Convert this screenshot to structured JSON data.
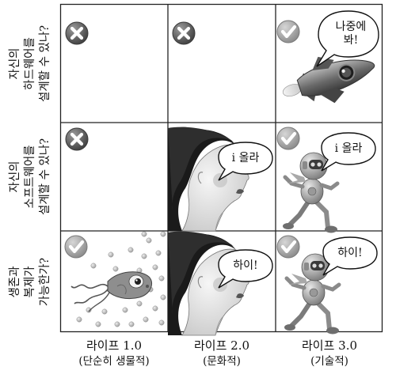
{
  "rows": [
    {
      "label_lines": [
        "자신의",
        "하드웨어를",
        "설계할 수 있나?"
      ]
    },
    {
      "label_lines": [
        "자신의",
        "소프트웨어를",
        "설계할 수 있나?"
      ]
    },
    {
      "label_lines": [
        "생존과",
        "복제가",
        "가능한가?"
      ]
    }
  ],
  "columns": [
    {
      "title": "라이프 1.0",
      "subtitle": "(단순히 생물적)"
    },
    {
      "title": "라이프 2.0",
      "subtitle": "(문화적)"
    },
    {
      "title": "라이프 3.0",
      "subtitle": "(기술적)"
    }
  ],
  "cells": {
    "r1c1": {
      "mark": "x"
    },
    "r1c2": {
      "mark": "x"
    },
    "r1c3": {
      "mark": "check",
      "picture": "rocket",
      "speech_lines": [
        "나중에",
        "봐!"
      ]
    },
    "r2c1": {
      "mark": "x"
    },
    "r2c2": {
      "mark": "check",
      "picture": "woman",
      "speech": "i 올라"
    },
    "r2c3": {
      "mark": "check",
      "picture": "robot",
      "speech": "i 올라"
    },
    "r3c1": {
      "mark": "check",
      "picture": "bacterium"
    },
    "r3c2": {
      "mark": "check",
      "picture": "woman",
      "speech": "하이!"
    },
    "r3c3": {
      "mark": "check",
      "picture": "robot",
      "speech": "하이!"
    }
  },
  "colors": {
    "x_mark": "#5a5a5a",
    "check_mark": "#9a9a9a",
    "grid": "#222222"
  },
  "icons": [
    "x-circle-icon",
    "check-circle-icon"
  ]
}
